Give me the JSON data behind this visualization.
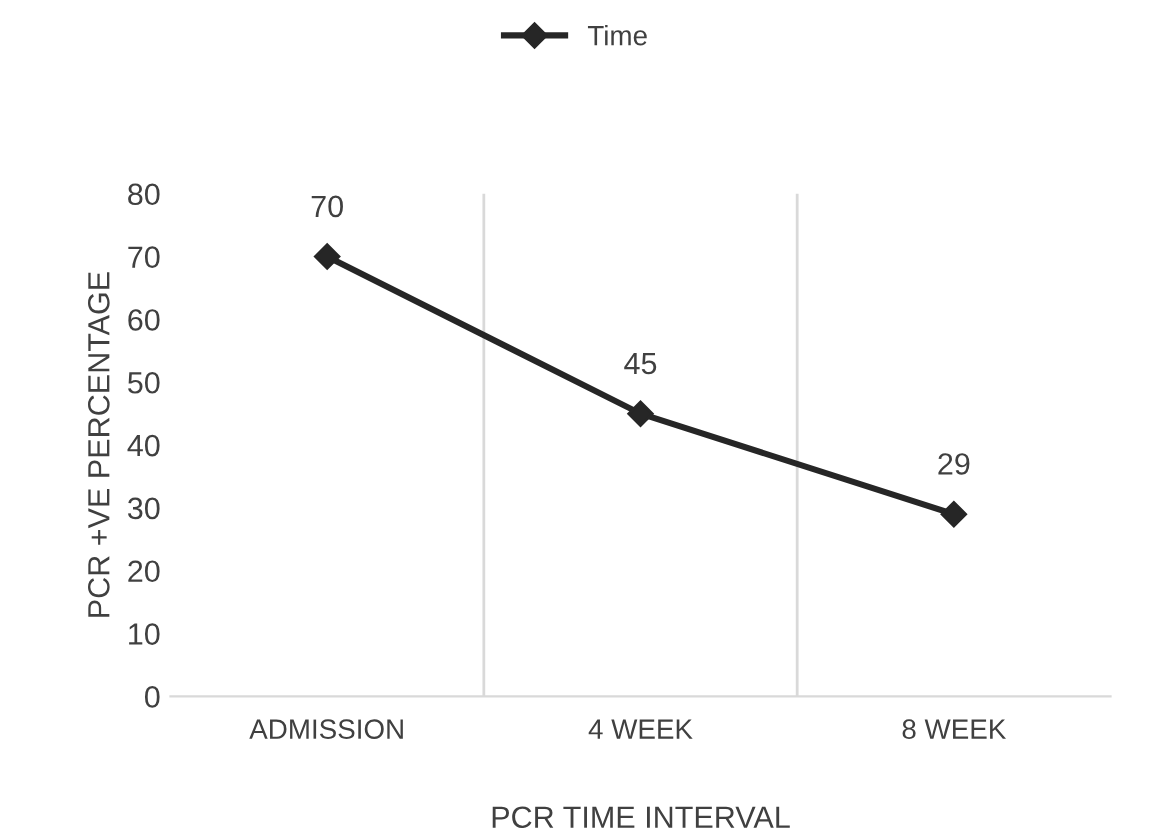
{
  "chart_data": {
    "type": "line",
    "xlabel": "PCR TIME INTERVAL",
    "ylabel": "PCR +VE PERCENTAGE",
    "categories": [
      "ADMISSION",
      "4 WEEK",
      "8 WEEK"
    ],
    "series": [
      {
        "name": "Time",
        "color": "#262626",
        "values": [
          70,
          45,
          29
        ]
      }
    ],
    "ylim": [
      0,
      80
    ],
    "yticks": [
      0,
      10,
      20,
      30,
      40,
      50,
      60,
      70,
      80
    ],
    "grid": "x",
    "legend": "top",
    "marker": "diamond",
    "line_style": "solid",
    "data_labels": true
  }
}
